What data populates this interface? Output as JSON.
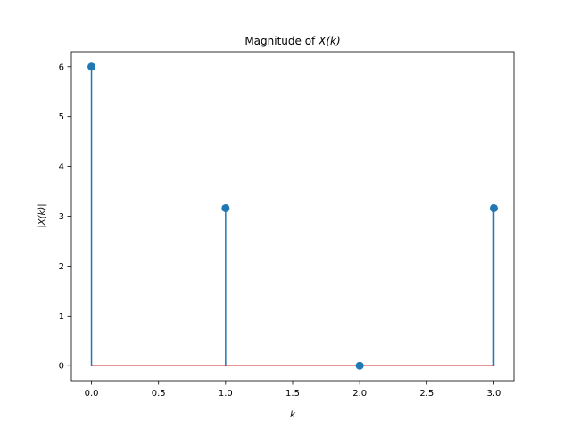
{
  "chart_data": {
    "type": "stem",
    "title_prefix": "Magnitude of ",
    "title_math": "X(k)",
    "xlabel": "k",
    "ylabel": "|X(k)|",
    "x": [
      0,
      1,
      2,
      3
    ],
    "y": [
      6.0,
      3.162,
      0.0,
      3.162
    ],
    "baseline": 0,
    "xlim": [
      -0.15,
      3.15
    ],
    "ylim": [
      -0.3,
      6.3
    ],
    "xticks": [
      0.0,
      0.5,
      1.0,
      1.5,
      2.0,
      2.5,
      3.0
    ],
    "xtick_labels": [
      "0.0",
      "0.5",
      "1.0",
      "1.5",
      "2.0",
      "2.5",
      "3.0"
    ],
    "yticks": [
      0,
      1,
      2,
      3,
      4,
      5,
      6
    ],
    "ytick_labels": [
      "0",
      "1",
      "2",
      "3",
      "4",
      "5",
      "6"
    ],
    "grid": false,
    "colors": {
      "stem": "#1f77b4",
      "marker": "#1f77b4",
      "baseline": "#d62728",
      "axes": "#000000"
    }
  }
}
